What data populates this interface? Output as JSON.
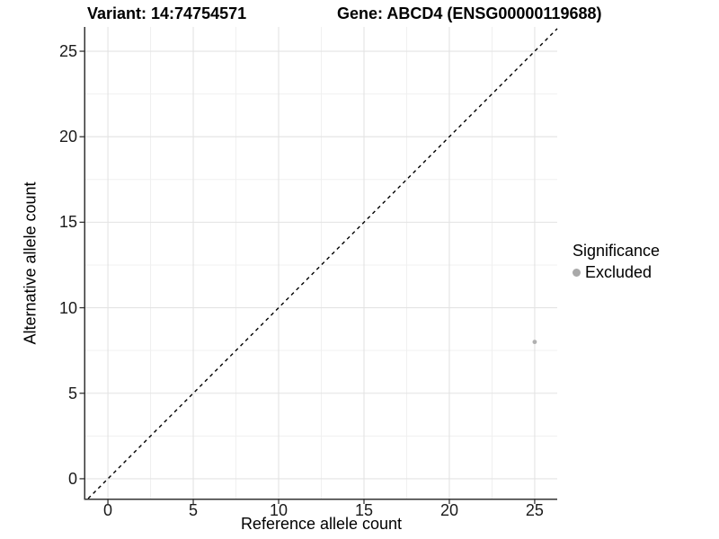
{
  "figure": {
    "title_left": "Variant: 14:74754571",
    "title_right": "Gene: ABCD4 (ENSG00000119688)"
  },
  "chart_data": {
    "type": "scatter",
    "title": "Variant: 14:74754571 / Gene: ABCD4 (ENSG00000119688)",
    "xlabel": "Reference allele count",
    "ylabel": "Alternative allele count",
    "xlim": [
      -1.32,
      26.32
    ],
    "ylim": [
      -1.16,
      26.42
    ],
    "x_ticks": [
      0,
      5,
      10,
      15,
      20,
      25
    ],
    "y_ticks": [
      0,
      5,
      10,
      15,
      20,
      25
    ],
    "x_minor_ticks": [
      2.5,
      7.5,
      12.5,
      17.5,
      22.5
    ],
    "y_minor_ticks": [
      2.5,
      7.5,
      12.5,
      17.5,
      22.5
    ],
    "grid": "major+minor",
    "reference_line": {
      "kind": "identity y=x",
      "style": "dashed",
      "color": "#000000"
    },
    "series": [
      {
        "name": "Excluded",
        "color": "#b0b0b0",
        "points": [
          [
            25,
            8
          ]
        ]
      }
    ],
    "legend": {
      "title": "Significance",
      "position": "right",
      "entries": [
        {
          "label": "Excluded",
          "color": "#a9a9a9",
          "marker": "circle"
        }
      ]
    }
  },
  "colors": {
    "background": "#ffffff",
    "grid_major": "#e3e3e3",
    "grid_minor": "#f0f0f0",
    "axis_line": "#333333",
    "tick_mark": "#333333",
    "tick_label": "#1a1a1a",
    "point": "#b0b0b0",
    "reference_line": "#000000"
  }
}
